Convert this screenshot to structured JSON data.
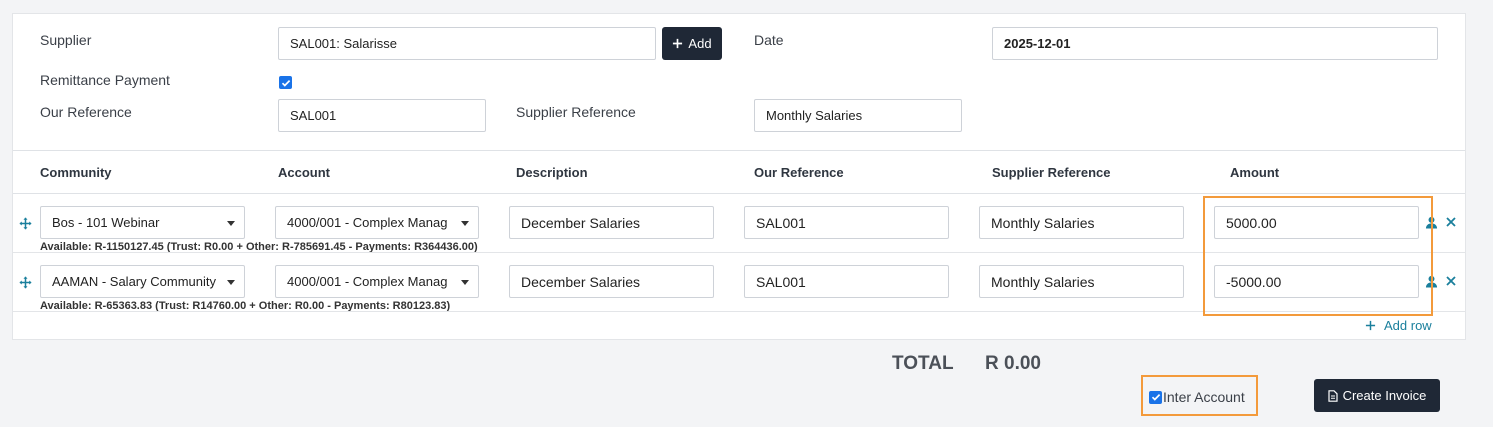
{
  "form": {
    "supplier_label": "Supplier",
    "supplier_value": "SAL001: Salarisse",
    "add_label": "Add",
    "date_label": "Date",
    "date_value": "2025-12-01",
    "remittance_label": "Remittance Payment",
    "remittance_checked": true,
    "our_reference_label": "Our Reference",
    "our_reference_value": "SAL001",
    "supplier_reference_label": "Supplier Reference",
    "supplier_reference_value": "Monthly Salaries"
  },
  "table": {
    "headers": [
      "Community",
      "Account",
      "Description",
      "Our Reference",
      "Supplier Reference",
      "Amount"
    ],
    "rows": [
      {
        "community": "Bos - 101 Webinar",
        "account": "4000/001 - Complex Manag",
        "description": "December Salaries",
        "our_reference": "SAL001",
        "supplier_reference": "Monthly Salaries",
        "amount": "5000.00",
        "available": "Available: R-1150127.45 (Trust: R0.00 + Other: R-785691.45 - Payments: R364436.00)"
      },
      {
        "community": "AAMAN - Salary Community",
        "account": "4000/001 - Complex Manag",
        "description": "December Salaries",
        "our_reference": "SAL001",
        "supplier_reference": "Monthly Salaries",
        "amount": "-5000.00",
        "available": "Available: R-65363.83 (Trust: R14760.00 + Other: R0.00 - Payments: R80123.83)"
      }
    ],
    "add_row_label": "Add row"
  },
  "footer": {
    "total_label": "TOTAL",
    "total_value": "R 0.00",
    "inter_account_label": "Inter Account",
    "inter_account_checked": true,
    "create_invoice_label": "Create Invoice"
  },
  "icons": {
    "plus": "plus-icon",
    "checkbox": "checkmark-icon",
    "drag": "move-arrows-icon",
    "user": "user-icon",
    "remove": "close-icon",
    "document": "document-icon",
    "caret": "caret-down-icon"
  },
  "colors": {
    "dark_button": "#1f2836",
    "accent_teal": "#1a7f9c",
    "checkbox_blue": "#1a73e8",
    "highlight_orange": "#f39a3b"
  }
}
